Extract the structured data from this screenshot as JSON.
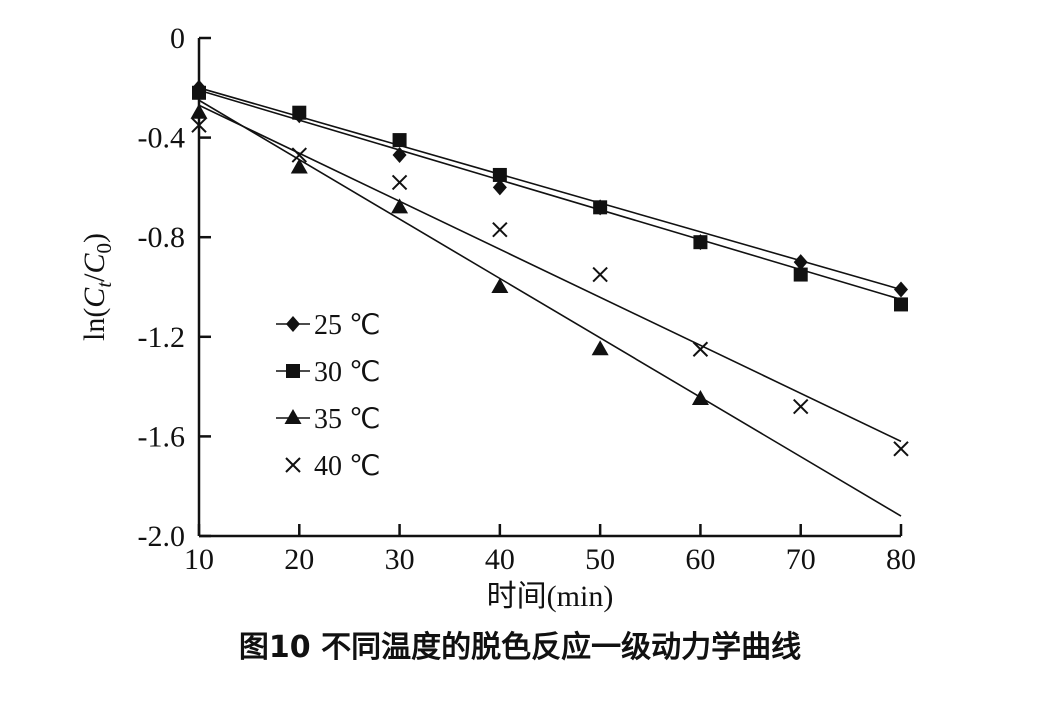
{
  "caption": "图10  不同温度的脱色反应一级动力学曲线",
  "chart_data": {
    "type": "scatter",
    "xlabel": "时间(min)",
    "ylabel": "ln(Ct/C0)",
    "xlim": [
      10,
      80
    ],
    "ylim": [
      -2.0,
      0
    ],
    "x_ticks": [
      10,
      20,
      30,
      40,
      50,
      60,
      70,
      80
    ],
    "y_ticks": [
      0,
      -0.4,
      -0.8,
      -1.2,
      -1.6,
      -2.0
    ],
    "y_tick_labels": [
      "0",
      "-0.4",
      "-0.8",
      "-1.2",
      "-1.6",
      "-2.0"
    ],
    "grid": false,
    "legend_position": "left-center",
    "series": [
      {
        "name": "25 ℃",
        "marker": "diamond",
        "color": "#111111",
        "x": [
          10,
          20,
          30,
          40,
          50,
          60,
          70,
          80
        ],
        "y": [
          -0.2,
          -0.31,
          -0.47,
          -0.6,
          -0.68,
          -0.82,
          -0.9,
          -1.01
        ],
        "fit": [
          [
            10,
            -0.2
          ],
          [
            80,
            -1.01
          ]
        ]
      },
      {
        "name": "30 ℃",
        "marker": "square",
        "color": "#111111",
        "x": [
          10,
          20,
          30,
          40,
          50,
          60,
          70,
          80
        ],
        "y": [
          -0.22,
          -0.3,
          -0.41,
          -0.55,
          -0.68,
          -0.82,
          -0.95,
          -1.07
        ],
        "fit": [
          [
            10,
            -0.21
          ],
          [
            80,
            -1.05
          ]
        ]
      },
      {
        "name": "35 ℃",
        "marker": "triangle",
        "color": "#111111",
        "x": [
          10,
          20,
          30,
          40,
          50,
          60
        ],
        "y": [
          -0.3,
          -0.52,
          -0.68,
          -1.0,
          -1.25,
          -1.45
        ],
        "fit": [
          [
            10,
            -0.25
          ],
          [
            80,
            -1.92
          ]
        ]
      },
      {
        "name": "40 ℃",
        "marker": "cross",
        "color": "#111111",
        "x": [
          10,
          20,
          30,
          40,
          50,
          60,
          70,
          80
        ],
        "y": [
          -0.35,
          -0.47,
          -0.58,
          -0.77,
          -0.95,
          -1.25,
          -1.48,
          -1.65
        ],
        "fit": [
          [
            10,
            -0.27
          ],
          [
            80,
            -1.62
          ]
        ]
      }
    ]
  }
}
